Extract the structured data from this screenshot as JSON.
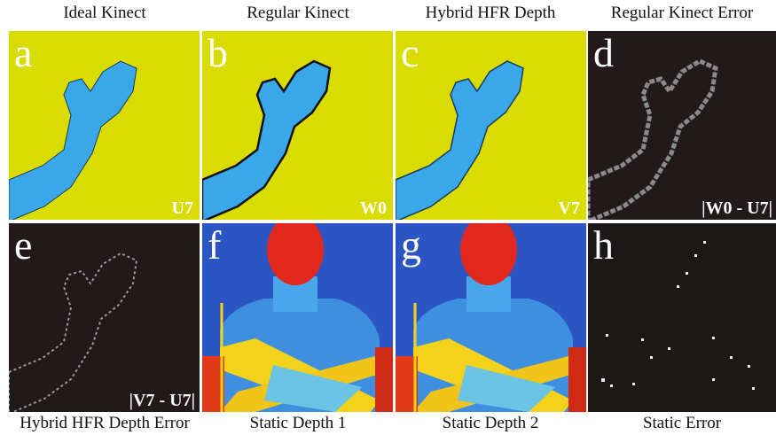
{
  "panels": [
    {
      "letter": "a",
      "caption": "Ideal Kinect",
      "tag": "U7"
    },
    {
      "letter": "b",
      "caption": "Regular Kinect",
      "tag": "W0"
    },
    {
      "letter": "c",
      "caption": "Hybrid HFR Depth",
      "tag": "V7"
    },
    {
      "letter": "d",
      "caption": "Regular Kinect Error",
      "tag": "|W0 - U7|"
    },
    {
      "letter": "e",
      "caption": "Hybrid HFR Depth Error",
      "tag": "|V7 - U7|"
    },
    {
      "letter": "f",
      "caption": "Static Depth 1"
    },
    {
      "letter": "g",
      "caption": "Static Depth 2"
    },
    {
      "letter": "h",
      "caption": "Static Error"
    }
  ]
}
